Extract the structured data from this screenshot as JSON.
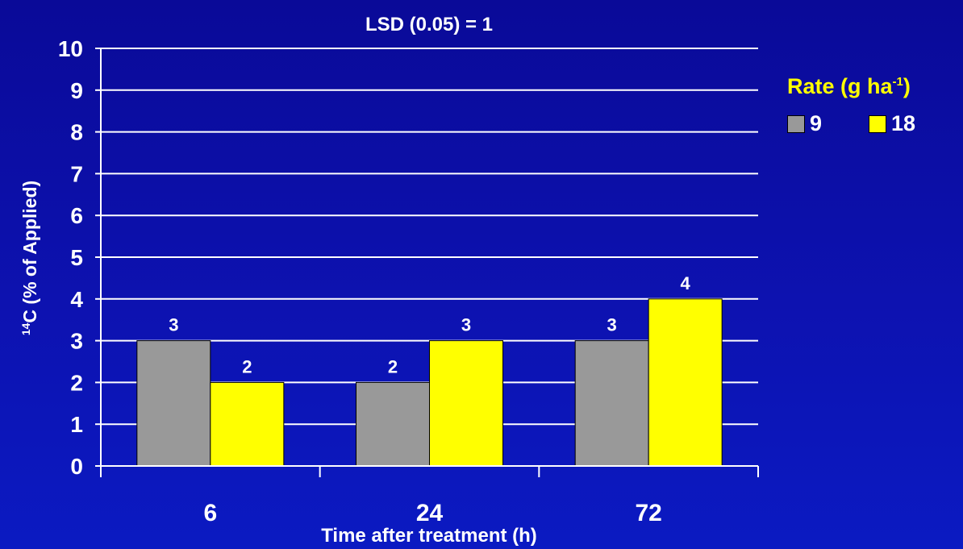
{
  "chart_data": {
    "type": "bar",
    "title": "LSD (0.05) = 1",
    "xlabel": "Time after treatment (h)",
    "ylabel_base": "C (% of Applied)",
    "ylabel_sup": "14",
    "categories": [
      "6",
      "24",
      "72"
    ],
    "ylim": [
      0,
      10
    ],
    "yticks": [
      0,
      1,
      2,
      3,
      4,
      5,
      6,
      7,
      8,
      9,
      10
    ],
    "grid": true,
    "legend": {
      "title_base": "Rate (g ha",
      "title_sup": "-1",
      "title_end": ")",
      "placement": "right"
    },
    "series": [
      {
        "name": "9",
        "values": [
          3,
          2,
          3
        ],
        "color": "#999999"
      },
      {
        "name": "18",
        "values": [
          2,
          3,
          4
        ],
        "color": "#ffff00"
      }
    ]
  },
  "colors": {
    "background": "#0d12b0",
    "gridline": "#ffffff",
    "legend_title": "#ffff00",
    "text": "#ffffff"
  }
}
